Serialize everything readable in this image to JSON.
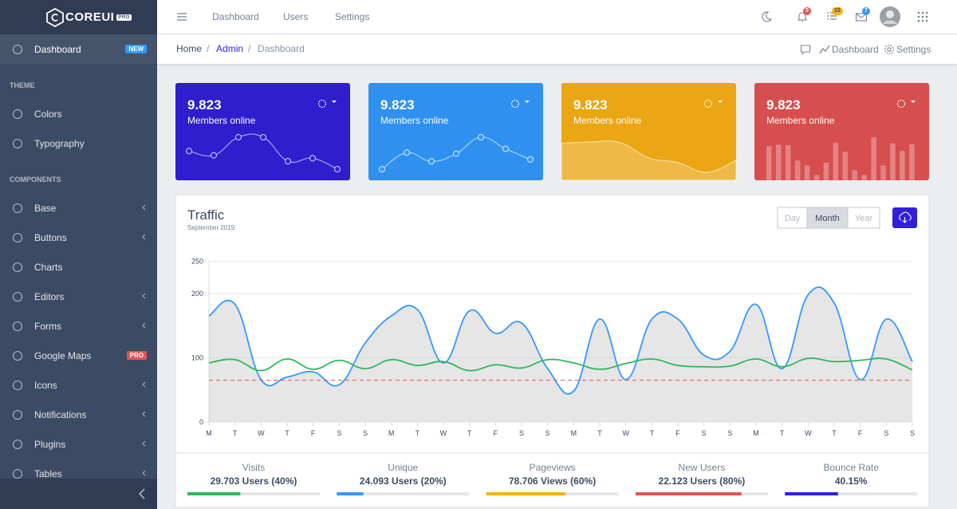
{
  "sidebar": {
    "brand": "COREUI",
    "brand_tag": "PRO",
    "nav": [
      {
        "label": "Dashboard",
        "badge": "NEW",
        "badge_color": "#39f",
        "active": true
      },
      {
        "heading": "THEME"
      },
      {
        "label": "Colors"
      },
      {
        "label": "Typography"
      },
      {
        "heading": "COMPONENTS"
      },
      {
        "label": "Base",
        "expandable": true
      },
      {
        "label": "Buttons",
        "expandable": true
      },
      {
        "label": "Charts"
      },
      {
        "label": "Editors",
        "expandable": true
      },
      {
        "label": "Forms",
        "expandable": true
      },
      {
        "label": "Google Maps",
        "badge": "PRO",
        "badge_color": "#e55353"
      },
      {
        "label": "Icons",
        "expandable": true
      },
      {
        "label": "Notifications",
        "expandable": true
      },
      {
        "label": "Plugins",
        "expandable": true
      },
      {
        "label": "Tables",
        "expandable": true
      }
    ]
  },
  "header": {
    "nav": [
      "Dashboard",
      "Users",
      "Settings"
    ],
    "badges": [
      {
        "badge": 5,
        "badge_color": "#e55353"
      },
      {
        "badge": 15,
        "badge_color": "#f9b115"
      },
      {
        "badge": 7,
        "badge_color": "#39f"
      }
    ]
  },
  "breadcrumb": [
    "Home",
    "Admin",
    "Dashboard"
  ],
  "breadcrumb_actions": [
    "Dashboard",
    "Settings"
  ],
  "cards": [
    {
      "value": "9.823",
      "label": "Members online",
      "color": "#321fdb",
      "chart": {
        "kind": "line",
        "values": [
          65,
          59,
          84,
          84,
          51,
          55,
          40
        ]
      }
    },
    {
      "value": "9.823",
      "label": "Members online",
      "color": "#3399ff",
      "chart": {
        "kind": "line",
        "values": [
          1,
          18,
          9,
          17,
          34,
          22,
          11
        ]
      }
    },
    {
      "value": "9.823",
      "label": "Members online",
      "color": "#f9b115",
      "chart": {
        "kind": "area",
        "values": [
          78,
          81,
          80,
          45,
          34,
          12,
          40
        ]
      }
    },
    {
      "value": "9.823",
      "label": "Members online",
      "color": "#e55353",
      "chart": {
        "kind": "bar",
        "values": [
          78,
          81,
          80,
          45,
          34,
          12,
          40,
          85,
          65,
          23,
          12,
          98,
          34,
          84,
          67,
          82
        ]
      }
    }
  ],
  "traffic": {
    "title": "Traffic",
    "subtitle": "September 2019",
    "periods": [
      "Day",
      "Month",
      "Year"
    ],
    "active_period": 1,
    "chart": {
      "type": "line",
      "categories": [
        "M",
        "T",
        "W",
        "T",
        "F",
        "S",
        "S",
        "M",
        "T",
        "W",
        "T",
        "F",
        "S",
        "S",
        "M",
        "T",
        "W",
        "T",
        "F",
        "S",
        "S",
        "M",
        "T",
        "W",
        "T",
        "F",
        "S",
        "S"
      ],
      "series": [
        {
          "color": "#3399ff",
          "fill": "rgba(200,200,200,0.45)",
          "values": [
            165,
            183,
            66,
            70,
            78,
            58,
            123,
            165,
            175,
            92,
            173,
            138,
            154,
            83,
            48,
            160,
            66,
            160,
            160,
            104,
            110,
            183,
            83,
            198,
            185,
            66,
            160,
            94
          ]
        },
        {
          "color": "#2eb85c",
          "values": [
            92,
            97,
            80,
            98,
            82,
            96,
            83,
            97,
            88,
            94,
            80,
            89,
            84,
            97,
            92,
            82,
            91,
            98,
            88,
            86,
            87,
            98,
            86,
            99,
            94,
            96,
            98,
            81
          ]
        },
        {
          "color": "#e55353",
          "dashed": true,
          "values": [
            65,
            65,
            65,
            65,
            65,
            65,
            65,
            65,
            65,
            65,
            65,
            65,
            65,
            65,
            65,
            65,
            65,
            65,
            65,
            65,
            65,
            65,
            65,
            65,
            65,
            65,
            65,
            65
          ]
        }
      ],
      "ylim": [
        0,
        250
      ],
      "yticks": [
        0,
        100,
        200,
        250
      ],
      "grid": true
    },
    "stats": [
      {
        "label": "Visits",
        "value": "29.703 Users (40%)",
        "progress": 40,
        "color": "#2eb85c"
      },
      {
        "label": "Unique",
        "value": "24.093 Users (20%)",
        "progress": 20,
        "color": "#3399ff"
      },
      {
        "label": "Pageviews",
        "value": "78.706 Views (60%)",
        "progress": 60,
        "color": "#f9b115"
      },
      {
        "label": "New Users",
        "value": "22.123 Users (80%)",
        "progress": 80,
        "color": "#e55353"
      },
      {
        "label": "Bounce Rate",
        "value": "40.15%",
        "progress": 40.15,
        "color": "#321fdb"
      }
    ]
  }
}
